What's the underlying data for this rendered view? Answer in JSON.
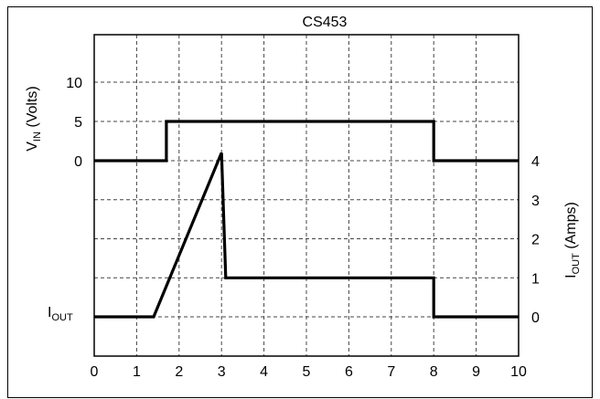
{
  "chart_data": {
    "type": "line",
    "title": "CS453",
    "xlim": [
      0,
      10
    ],
    "x_ticks": [
      "0",
      "1",
      "2",
      "3",
      "4",
      "5",
      "6",
      "7",
      "8",
      "9",
      "10"
    ],
    "left_axis": {
      "label_main": "V",
      "label_sub": "IN",
      "label_tail": " (Volts)",
      "ticks": [
        {
          "label": "10",
          "value": 10
        },
        {
          "label": "5",
          "value": 5
        },
        {
          "label": "0",
          "value": 0
        }
      ]
    },
    "right_axis": {
      "label_main": "I",
      "label_sub": "OUT",
      "label_tail": " (Amps)",
      "ticks": [
        {
          "label": "4",
          "value": 4
        },
        {
          "label": "3",
          "value": 3
        },
        {
          "label": "2",
          "value": 2
        },
        {
          "label": "1",
          "value": 1
        },
        {
          "label": "0",
          "value": 0
        }
      ]
    },
    "grid": true,
    "series": [
      {
        "axis": "left",
        "x": [
          0,
          1.7,
          1.7,
          8,
          8,
          10
        ],
        "y": [
          0,
          0,
          5,
          5,
          0,
          0
        ]
      },
      {
        "axis": "right",
        "x": [
          0,
          1.4,
          3.0,
          3.1,
          8,
          8,
          10
        ],
        "y": [
          0,
          0,
          4.2,
          1,
          1,
          0,
          0
        ]
      }
    ],
    "annotations": [
      {
        "text_main": "I",
        "text_sub": "OUT",
        "x": 0,
        "y": 0,
        "axis": "right"
      }
    ]
  }
}
